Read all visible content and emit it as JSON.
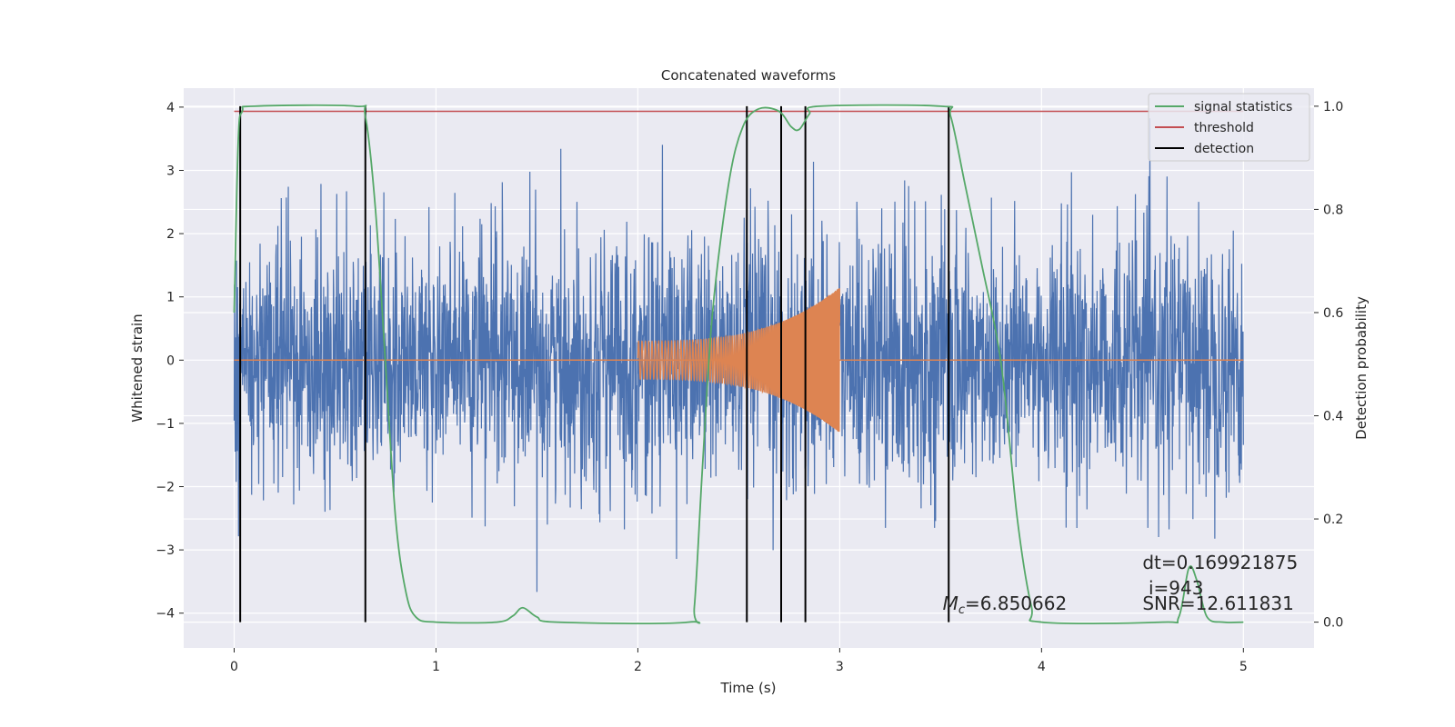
{
  "chart_data": {
    "type": "line",
    "title": "Concatenated waveforms",
    "xlabel": "Time (s)",
    "ylabel": "Whitened strain",
    "ylabel_right": "Detection probability",
    "xlim": [
      -0.25,
      5.35
    ],
    "ylim": [
      -4.55,
      4.3
    ],
    "ylim_right": [
      -0.05,
      1.035
    ],
    "x_ticks": [
      0,
      1,
      2,
      3,
      4,
      5
    ],
    "x_tick_labels": [
      "0",
      "1",
      "2",
      "3",
      "4",
      "5"
    ],
    "y_ticks": [
      4,
      3,
      2,
      1,
      0,
      -1,
      -2,
      -3,
      -4
    ],
    "y_tick_labels": [
      "4",
      "3",
      "2",
      "1",
      "0",
      "−1",
      "−2",
      "−3",
      "−4"
    ],
    "y_right_ticks": [
      1.0,
      0.8,
      0.6,
      0.4,
      0.2,
      0.0
    ],
    "y_right_tick_labels": [
      "1.0",
      "0.8",
      "0.6",
      "0.4",
      "0.2",
      "0.0"
    ],
    "grid": true,
    "legend_position": "top-right",
    "legend": [
      {
        "label": "signal statistics",
        "color": "#55a868"
      },
      {
        "label": "threshold",
        "color": "#c44e52"
      },
      {
        "label": "detection",
        "color": "#000000"
      }
    ],
    "strain_noise": {
      "color": "#4c72b0",
      "t_start": 0,
      "t_end": 5,
      "amplitude_std": 1.0,
      "max_abs": 3.9
    },
    "chirp": {
      "color": "#dd8452",
      "t_start": 2.0,
      "t_end": 3.0,
      "amp_start": 0.3,
      "amp_end": 1.15,
      "freq_start": 60,
      "freq_end": 250
    },
    "signal_statistics": {
      "color": "#55a868",
      "axis": "right",
      "points": [
        [
          0.0,
          0.6
        ],
        [
          0.02,
          0.93
        ],
        [
          0.04,
          0.99
        ],
        [
          0.1,
          1.0
        ],
        [
          0.6,
          1.0
        ],
        [
          0.65,
          0.98
        ],
        [
          0.7,
          0.8
        ],
        [
          0.75,
          0.5
        ],
        [
          0.8,
          0.2
        ],
        [
          0.85,
          0.06
        ],
        [
          0.9,
          0.01
        ],
        [
          1.0,
          0.0
        ],
        [
          1.3,
          0.0
        ],
        [
          1.38,
          0.012
        ],
        [
          1.43,
          0.028
        ],
        [
          1.5,
          0.01
        ],
        [
          1.6,
          0.0
        ],
        [
          2.25,
          0.0
        ],
        [
          2.28,
          0.03
        ],
        [
          2.32,
          0.3
        ],
        [
          2.37,
          0.6
        ],
        [
          2.45,
          0.85
        ],
        [
          2.52,
          0.96
        ],
        [
          2.6,
          0.995
        ],
        [
          2.7,
          0.99
        ],
        [
          2.76,
          0.96
        ],
        [
          2.8,
          0.955
        ],
        [
          2.85,
          0.985
        ],
        [
          2.9,
          1.0
        ],
        [
          3.5,
          1.0
        ],
        [
          3.55,
          0.98
        ],
        [
          3.62,
          0.85
        ],
        [
          3.7,
          0.7
        ],
        [
          3.8,
          0.5
        ],
        [
          3.88,
          0.2
        ],
        [
          3.95,
          0.03
        ],
        [
          4.0,
          0.0
        ],
        [
          4.6,
          0.0
        ],
        [
          4.68,
          0.01
        ],
        [
          4.73,
          0.105
        ],
        [
          4.77,
          0.08
        ],
        [
          4.82,
          0.01
        ],
        [
          4.9,
          0.0
        ],
        [
          5.0,
          0.0
        ]
      ]
    },
    "threshold": {
      "color": "#c44e52",
      "axis": "right",
      "value": 0.99,
      "t_start": 0,
      "t_end": 5
    },
    "detections": {
      "color": "#000000",
      "times": [
        0.03,
        0.65,
        2.54,
        2.71,
        2.83,
        3.54
      ]
    },
    "annotations": [
      {
        "text": "dt=0.169921875",
        "x": 4.5,
        "y": -3.3
      },
      {
        "text": "i=943",
        "x": 4.53,
        "y": -3.7
      },
      {
        "text": "SNR=12.611831",
        "x": 4.5,
        "y": -3.95
      }
    ],
    "mc_annotation": {
      "symbol": "M",
      "subscript": "c",
      "value": "=6.850662",
      "x": 3.51,
      "y": -3.95
    }
  }
}
